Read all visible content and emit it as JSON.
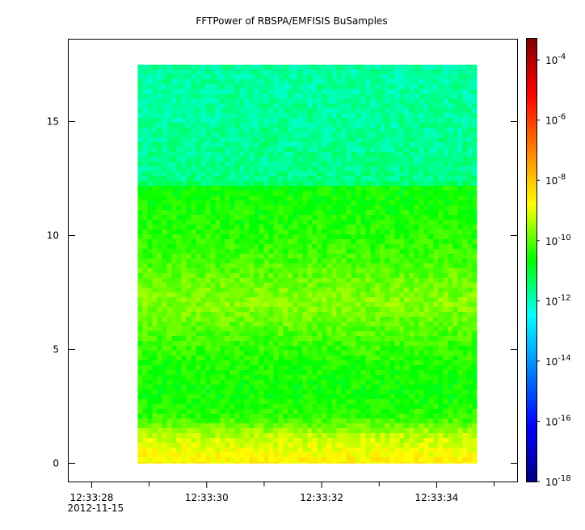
{
  "chart_data": {
    "type": "heatmap",
    "title": "FFTPower of RBSPA/EMFISIS  BuSamples",
    "xlabel": "",
    "ylabel": "",
    "x_axis": {
      "unit": "time",
      "range": [
        "12:33:27.6",
        "12:33:35.4"
      ],
      "major_ticks": [
        {
          "value": "12:33:28",
          "label": "12:33:28",
          "sublabel": "2012-11-15"
        },
        {
          "value": "12:33:30",
          "label": "12:33:30"
        },
        {
          "value": "12:33:32",
          "label": "12:33:32"
        },
        {
          "value": "12:33:34",
          "label": "12:33:34"
        }
      ],
      "minor_ticks": [
        "12:33:29",
        "12:33:31",
        "12:33:33",
        "12:33:35"
      ]
    },
    "y_axis": {
      "range": [
        -0.8,
        18.6
      ],
      "ticks": [
        0,
        5,
        10,
        15
      ]
    },
    "data_extent": {
      "x": [
        "12:33:28.8",
        "12:33:34.7"
      ],
      "y": [
        0,
        17.5
      ]
    },
    "colorbar": {
      "scale": "log",
      "range_exponent": [
        -18,
        -3.3
      ],
      "ticks": [
        {
          "exponent": -4,
          "label": "10",
          "sup": "-4"
        },
        {
          "exponent": -6,
          "label": "10",
          "sup": "-6"
        },
        {
          "exponent": -8,
          "label": "10",
          "sup": "-8"
        },
        {
          "exponent": -10,
          "label": "10",
          "sup": "-10"
        },
        {
          "exponent": -12,
          "label": "10",
          "sup": "-12"
        },
        {
          "exponent": -14,
          "label": "10",
          "sup": "-14"
        },
        {
          "exponent": -16,
          "label": "10",
          "sup": "-16"
        },
        {
          "exponent": -18,
          "label": "10",
          "sup": "-18"
        }
      ],
      "colors": [
        "#00007f",
        "#0000ff",
        "#007fff",
        "#00ffff",
        "#00ff00",
        "#ffff00",
        "#ff7f00",
        "#ff0000",
        "#7f0000"
      ]
    },
    "power_profile_log10": [
      {
        "y": 0.0,
        "log_power": -8.6
      },
      {
        "y": 0.6,
        "log_power": -8.9
      },
      {
        "y": 1.2,
        "log_power": -9.3
      },
      {
        "y": 2.0,
        "log_power": -10.3
      },
      {
        "y": 3.0,
        "log_power": -10.6
      },
      {
        "y": 4.0,
        "log_power": -10.5
      },
      {
        "y": 5.0,
        "log_power": -10.3
      },
      {
        "y": 6.0,
        "log_power": -10.0
      },
      {
        "y": 7.0,
        "log_power": -9.7
      },
      {
        "y": 8.0,
        "log_power": -9.9
      },
      {
        "y": 9.0,
        "log_power": -10.2
      },
      {
        "y": 10.0,
        "log_power": -10.4
      },
      {
        "y": 11.0,
        "log_power": -10.5
      },
      {
        "y": 12.2,
        "log_power": -10.6
      },
      {
        "y": 12.3,
        "log_power": -11.6
      },
      {
        "y": 14.0,
        "log_power": -11.7
      },
      {
        "y": 16.0,
        "log_power": -11.8
      },
      {
        "y": 17.5,
        "log_power": -11.8
      }
    ],
    "grid": false,
    "legend": "none"
  }
}
